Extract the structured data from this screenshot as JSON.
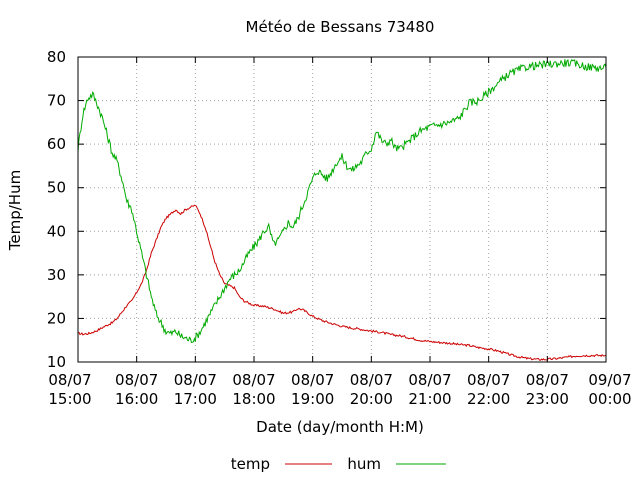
{
  "chart_data": {
    "type": "line",
    "title": "Météo de Bessans 73480",
    "xlabel": "Date (day/month H:M)",
    "ylabel": "Temp/Hum",
    "ylim": [
      10,
      80
    ],
    "yticks": [
      10,
      20,
      30,
      40,
      50,
      60,
      70,
      80
    ],
    "xlim": [
      0,
      540
    ],
    "xticks": [
      {
        "x": 0,
        "date": "08/07",
        "time": "15:00"
      },
      {
        "x": 60,
        "date": "08/07",
        "time": "16:00"
      },
      {
        "x": 120,
        "date": "08/07",
        "time": "17:00"
      },
      {
        "x": 180,
        "date": "08/07",
        "time": "18:00"
      },
      {
        "x": 240,
        "date": "08/07",
        "time": "19:00"
      },
      {
        "x": 300,
        "date": "08/07",
        "time": "20:00"
      },
      {
        "x": 360,
        "date": "08/07",
        "time": "21:00"
      },
      {
        "x": 420,
        "date": "08/07",
        "time": "22:00"
      },
      {
        "x": 480,
        "date": "08/07",
        "time": "23:00"
      },
      {
        "x": 540,
        "date": "09/07",
        "time": "00:00"
      }
    ],
    "x_unit": "minutes",
    "grid": true,
    "legend_position": "bottom",
    "series": [
      {
        "name": "temp",
        "color": "#cc0000",
        "points": [
          [
            0,
            16.6
          ],
          [
            5,
            16.4
          ],
          [
            10,
            16.5
          ],
          [
            15,
            16.8
          ],
          [
            20,
            17.3
          ],
          [
            25,
            17.9
          ],
          [
            30,
            18.5
          ],
          [
            35,
            19
          ],
          [
            40,
            20
          ],
          [
            45,
            21.5
          ],
          [
            50,
            23
          ],
          [
            55,
            24
          ],
          [
            60,
            26
          ],
          [
            65,
            28
          ],
          [
            70,
            31
          ],
          [
            75,
            35
          ],
          [
            80,
            38
          ],
          [
            85,
            41
          ],
          [
            90,
            43
          ],
          [
            95,
            44
          ],
          [
            100,
            45
          ],
          [
            105,
            44
          ],
          [
            110,
            45
          ],
          [
            115,
            45.5
          ],
          [
            120,
            46
          ],
          [
            125,
            44
          ],
          [
            130,
            41
          ],
          [
            135,
            37
          ],
          [
            140,
            33
          ],
          [
            145,
            30
          ],
          [
            150,
            28
          ],
          [
            155,
            27.5
          ],
          [
            160,
            27
          ],
          [
            165,
            25
          ],
          [
            170,
            24
          ],
          [
            175,
            23.5
          ],
          [
            180,
            23
          ],
          [
            190,
            22.8
          ],
          [
            200,
            22.2
          ],
          [
            210,
            21.2
          ],
          [
            220,
            21.5
          ],
          [
            225,
            22.3
          ],
          [
            230,
            22
          ],
          [
            240,
            20.5
          ],
          [
            250,
            19.5
          ],
          [
            260,
            18.8
          ],
          [
            270,
            18.2
          ],
          [
            280,
            17.8
          ],
          [
            290,
            17.5
          ],
          [
            300,
            17.1
          ],
          [
            310,
            16.8
          ],
          [
            320,
            16.3
          ],
          [
            330,
            16
          ],
          [
            340,
            15.5
          ],
          [
            350,
            15
          ],
          [
            360,
            14.7
          ],
          [
            370,
            14.5
          ],
          [
            380,
            14.3
          ],
          [
            390,
            14
          ],
          [
            400,
            13.8
          ],
          [
            410,
            13.3
          ],
          [
            420,
            13
          ],
          [
            430,
            12.5
          ],
          [
            440,
            11.8
          ],
          [
            450,
            11.2
          ],
          [
            460,
            10.8
          ],
          [
            470,
            10.6
          ],
          [
            480,
            10.6
          ],
          [
            490,
            10.8
          ],
          [
            500,
            11.1
          ],
          [
            510,
            11.4
          ],
          [
            520,
            11.5
          ],
          [
            530,
            11.5
          ],
          [
            540,
            11.5
          ]
        ]
      },
      {
        "name": "hum",
        "color": "#00aa00",
        "points": [
          [
            0,
            59
          ],
          [
            5,
            67
          ],
          [
            10,
            70.5
          ],
          [
            15,
            71.5
          ],
          [
            20,
            69
          ],
          [
            25,
            66
          ],
          [
            30,
            62
          ],
          [
            35,
            58
          ],
          [
            40,
            56
          ],
          [
            45,
            52
          ],
          [
            50,
            47
          ],
          [
            55,
            45
          ],
          [
            60,
            40
          ],
          [
            65,
            35
          ],
          [
            70,
            30
          ],
          [
            75,
            25
          ],
          [
            80,
            21
          ],
          [
            85,
            19
          ],
          [
            90,
            17
          ],
          [
            95,
            16.5
          ],
          [
            100,
            17
          ],
          [
            105,
            16
          ],
          [
            110,
            15.5
          ],
          [
            115,
            15
          ],
          [
            120,
            15.5
          ],
          [
            125,
            17
          ],
          [
            130,
            19
          ],
          [
            135,
            21
          ],
          [
            140,
            23
          ],
          [
            145,
            25
          ],
          [
            150,
            27
          ],
          [
            155,
            29
          ],
          [
            160,
            30
          ],
          [
            165,
            31
          ],
          [
            170,
            33
          ],
          [
            175,
            35
          ],
          [
            180,
            36.5
          ],
          [
            185,
            38
          ],
          [
            190,
            40
          ],
          [
            195,
            41
          ],
          [
            200,
            37
          ],
          [
            205,
            38
          ],
          [
            210,
            40
          ],
          [
            215,
            42
          ],
          [
            220,
            41
          ],
          [
            225,
            43
          ],
          [
            230,
            46
          ],
          [
            235,
            49
          ],
          [
            240,
            52
          ],
          [
            245,
            54
          ],
          [
            250,
            53
          ],
          [
            255,
            52
          ],
          [
            260,
            54
          ],
          [
            265,
            56
          ],
          [
            270,
            57
          ],
          [
            275,
            55
          ],
          [
            280,
            54
          ],
          [
            285,
            55
          ],
          [
            290,
            56
          ],
          [
            295,
            58
          ],
          [
            300,
            59
          ],
          [
            305,
            63
          ],
          [
            310,
            61
          ],
          [
            315,
            60
          ],
          [
            320,
            61
          ],
          [
            325,
            59
          ],
          [
            330,
            59
          ],
          [
            340,
            61
          ],
          [
            350,
            63
          ],
          [
            360,
            64
          ],
          [
            370,
            64.5
          ],
          [
            380,
            65
          ],
          [
            390,
            66
          ],
          [
            400,
            69.5
          ],
          [
            410,
            70
          ],
          [
            420,
            72
          ],
          [
            430,
            74
          ],
          [
            440,
            76
          ],
          [
            450,
            77
          ],
          [
            460,
            77.8
          ],
          [
            470,
            78
          ],
          [
            480,
            78.3
          ],
          [
            490,
            78.5
          ],
          [
            500,
            78.7
          ],
          [
            510,
            78.4
          ],
          [
            520,
            77.8
          ],
          [
            530,
            77.5
          ],
          [
            540,
            77.5
          ]
        ]
      }
    ]
  }
}
